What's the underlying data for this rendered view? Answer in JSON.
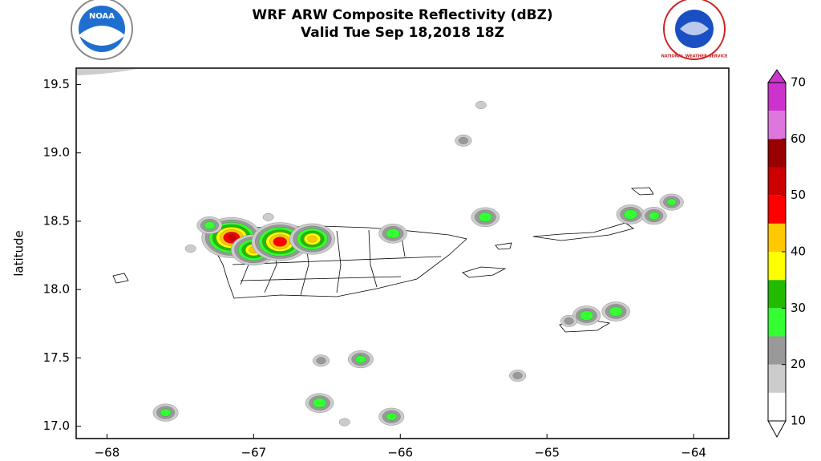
{
  "chart_data": {
    "type": "map",
    "title": "WRF ARW Composite Reflectivity (dBZ)",
    "subtitle": "Valid Tue Sep 18,2018 18Z",
    "ylabel": "latitude",
    "logo_texts": [
      "NOAA",
      "NATIONAL WEATHER SERVICE"
    ],
    "xlim": [
      -68.21,
      -63.76
    ],
    "ylim": [
      16.91,
      19.62
    ],
    "xticks": [
      {
        "value": -68,
        "label": "−68"
      },
      {
        "value": -67,
        "label": "−67"
      },
      {
        "value": -66,
        "label": "−66"
      },
      {
        "value": -65,
        "label": "−65"
      },
      {
        "value": -64,
        "label": "−64"
      }
    ],
    "yticks": [
      {
        "value": 17,
        "label": "17.0"
      },
      17.5,
      {
        "value": 18,
        "label": "18.0"
      },
      18.5,
      {
        "value": 19,
        "label": "19.0"
      },
      19.5
    ],
    "colorbar": {
      "levels": [
        10,
        15,
        20,
        25,
        30,
        35,
        40,
        45,
        50,
        55,
        60,
        65,
        70
      ],
      "colors": [
        "#ffffff",
        "#cccccc",
        "#999999",
        "#33ff33",
        "#22bb00",
        "#ffff00",
        "#ffc800",
        "#ff0000",
        "#cc0000",
        "#990000",
        "#dd77dd",
        "#cc33cc"
      ],
      "ticks": [
        10,
        20,
        30,
        40,
        50,
        60,
        70
      ]
    },
    "storms": {
      "x": [
        -67.15,
        -67.0,
        -66.82,
        -66.6,
        -67.3,
        -66.05,
        -65.42,
        -64.43,
        -64.73,
        -64.53,
        -64.85,
        -66.55,
        -66.27,
        -66.54,
        -67.6,
        -66.06,
        -65.57,
        -65.45,
        -65.2,
        -66.9,
        -67.43,
        -64.27,
        -64.15,
        -66.38
      ],
      "y": [
        18.38,
        18.29,
        18.35,
        18.37,
        18.47,
        18.41,
        18.53,
        18.55,
        17.81,
        17.84,
        17.77,
        17.17,
        17.49,
        17.48,
        17.1,
        17.07,
        19.09,
        19.35,
        17.37,
        18.53,
        18.3,
        18.54,
        18.64,
        17.03
      ],
      "values": [
        52,
        42,
        50,
        42,
        28,
        30,
        30,
        30,
        30,
        30,
        22,
        30,
        28,
        22,
        28,
        28,
        22,
        18,
        22,
        18,
        18,
        28,
        27,
        18
      ]
    }
  }
}
